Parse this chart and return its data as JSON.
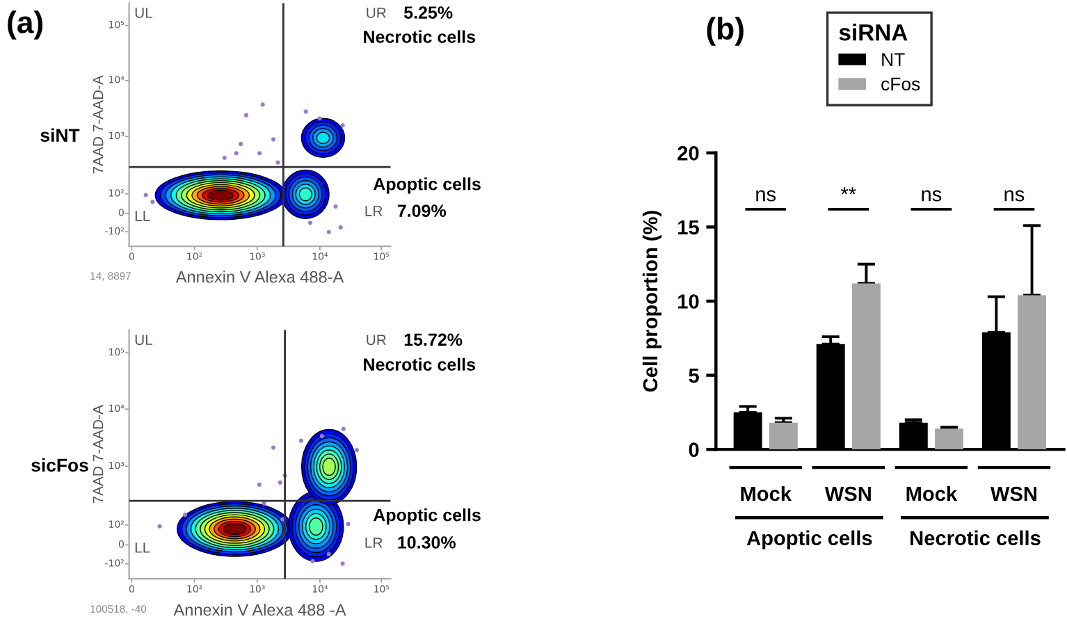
{
  "chart_data": [
    {
      "type": "other",
      "title": "(a)",
      "subtitle": "siNT",
      "xlabel": "Annexin V Alexa 488-A",
      "ylabel": "7AAD 7-AAD-A",
      "annotations": [
        "UL",
        "UR",
        "5.25%",
        "Necrotic cells",
        "Apoptic cells",
        "LR",
        "7.09%",
        "LL",
        "14, 8897",
        "0",
        "10²",
        "10³",
        "10⁴",
        "10⁵",
        "-10²",
        "0",
        "10²",
        "10³",
        "10⁴",
        "10⁵"
      ]
    },
    {
      "type": "other",
      "subtitle": "sicFos",
      "xlabel": "Annexin V Alexa 488 -A",
      "ylabel": "7AAD 7-AAD-A",
      "annotations": [
        "UL",
        "UR",
        "15.72%",
        "Necrotic cells",
        "Apoptic cells",
        "LR",
        "10.30%",
        "LL",
        "100518, -40",
        "0",
        "10²",
        "10³",
        "10⁴",
        "10⁵",
        "-10²",
        "0",
        "10²",
        "10³",
        "10⁴",
        "10⁵"
      ]
    },
    {
      "type": "bar",
      "title": "(b)",
      "ylabel": "Cell proportion (%)",
      "categories": [
        "Mock",
        "WSN",
        "Mock",
        "WSN"
      ],
      "series": [
        {
          "name": "NT",
          "color": "#000000",
          "values": [
            2.5,
            7.1,
            1.8,
            7.9
          ],
          "errors": [
            [
              2.5,
              2.9
            ],
            [
              7.1,
              7.6
            ],
            [
              1.8,
              2.0
            ],
            [
              7.9,
              10.3
            ]
          ]
        },
        {
          "name": "cFos",
          "color": "#a6a6a6",
          "values": [
            1.8,
            11.2,
            1.4,
            10.4
          ],
          "errors": [
            [
              1.8,
              2.1
            ],
            [
              11.2,
              12.5
            ],
            [
              1.4,
              1.5
            ],
            [
              10.4,
              15.1
            ]
          ]
        }
      ],
      "ylim": [
        0,
        20
      ],
      "yticks": [
        0,
        5,
        10,
        15,
        20
      ],
      "legend": "top",
      "legend_title": "siRNA",
      "annotations": [
        "ns",
        "**",
        "ns",
        "ns",
        "Apoptic cells",
        "Necrotic cells"
      ]
    }
  ]
}
